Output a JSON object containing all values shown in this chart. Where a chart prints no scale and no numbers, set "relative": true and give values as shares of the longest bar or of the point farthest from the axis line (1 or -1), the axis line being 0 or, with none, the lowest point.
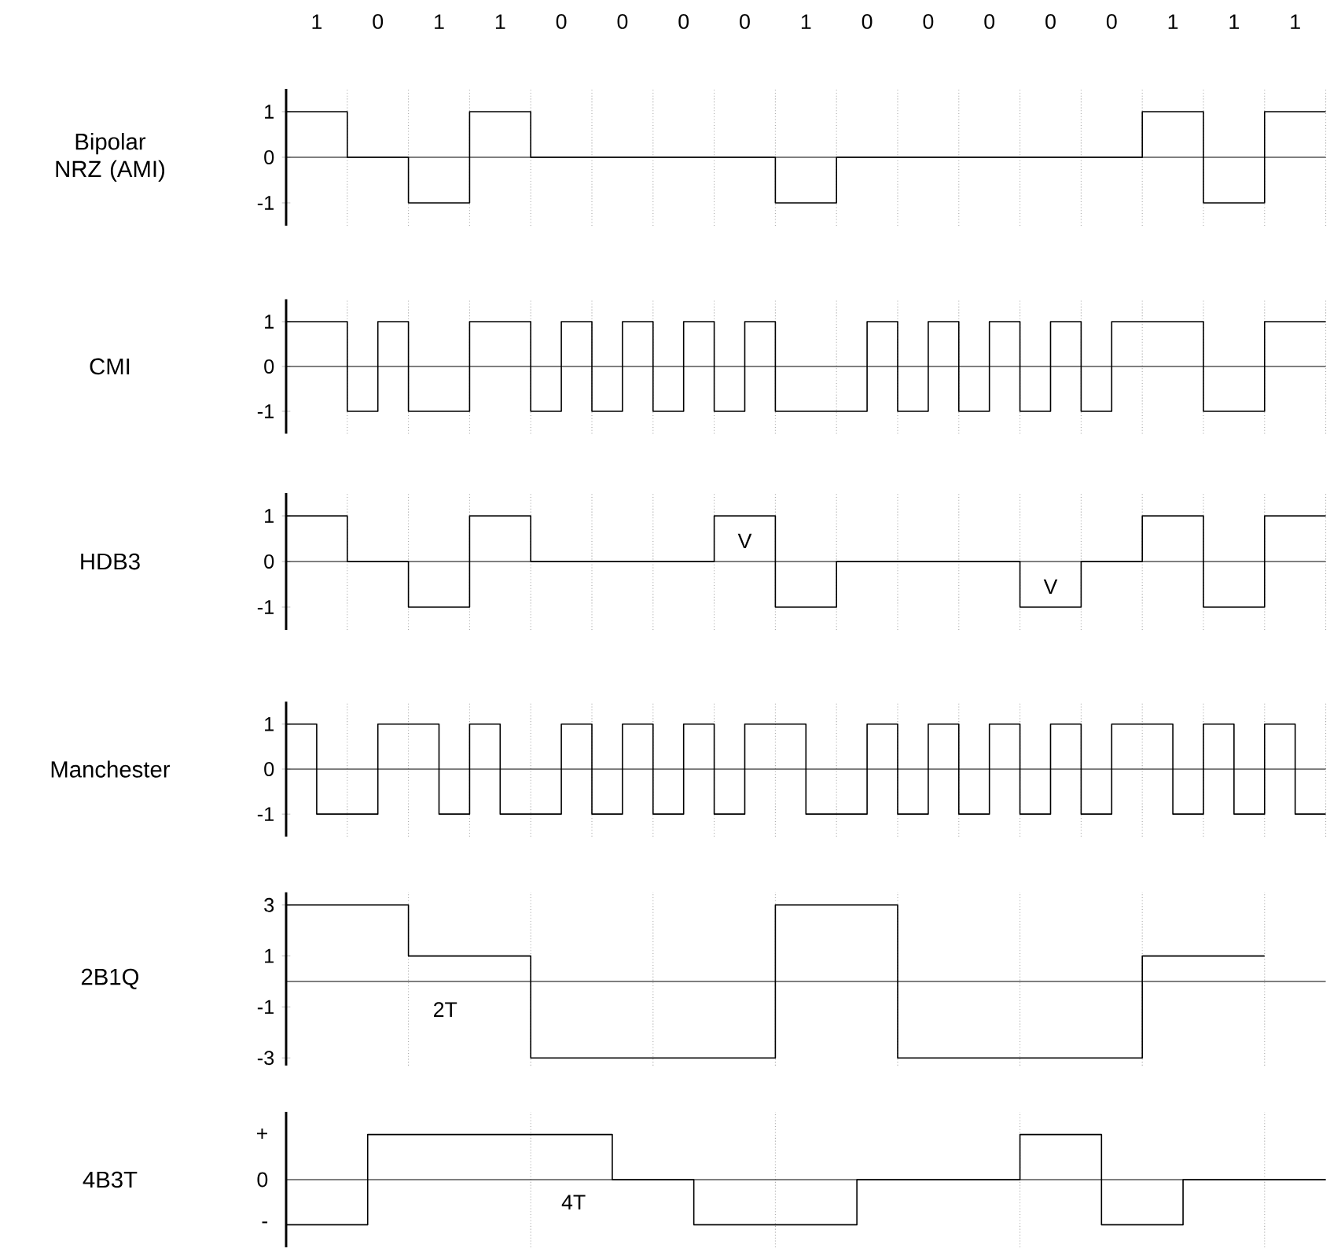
{
  "chart_data": [
    {
      "type": "step",
      "ylabel": "Bipolar NRZ (AMI)",
      "color": "#000000",
      "grid": "x",
      "categories": [
        null,
        "1",
        null,
        "0",
        null,
        "1",
        null,
        "1",
        null,
        "0",
        null,
        "0",
        null,
        "0",
        null,
        "0",
        null,
        "1",
        null,
        "0",
        null,
        "0",
        null,
        "0",
        null,
        "0",
        null,
        "0",
        null,
        "1",
        null,
        "1",
        null,
        "1",
        null
      ],
      "values": [
        1,
        1,
        0,
        0,
        -1,
        -1,
        1,
        1,
        0,
        0,
        0,
        0,
        0,
        0,
        0,
        0,
        -1,
        -1,
        0,
        0,
        0,
        0,
        0,
        0,
        0,
        0,
        0,
        0,
        1,
        1,
        -1,
        -1,
        1,
        1,
        1
      ],
      "ylim": [
        -1.5,
        1.5
      ],
      "yticks": [
        -1,
        0,
        1
      ]
    },
    {
      "type": "step",
      "ylabel": "CMI",
      "color": "#000000",
      "grid": "x",
      "categories": [
        null,
        null,
        null,
        null,
        null,
        null,
        null,
        null,
        null,
        null,
        null,
        null,
        null,
        null,
        null,
        null,
        null,
        null,
        null,
        null,
        null,
        null,
        null,
        null,
        null,
        null,
        null,
        null,
        null,
        null,
        null,
        null,
        null,
        null,
        null
      ],
      "values": [
        1,
        1,
        -1,
        1,
        -1,
        -1,
        1,
        1,
        -1,
        1,
        -1,
        1,
        -1,
        1,
        -1,
        1,
        -1,
        -1,
        -1,
        1,
        -1,
        1,
        -1,
        1,
        -1,
        1,
        -1,
        1,
        1,
        1,
        -1,
        -1,
        1,
        1,
        1
      ],
      "ylim": [
        -1.5,
        1.5
      ],
      "yticks": [
        -1,
        0,
        1
      ]
    },
    {
      "type": "step",
      "ylabel": "HDB3",
      "color": "#000000",
      "grid": "x",
      "categories": [
        null,
        null,
        null,
        null,
        null,
        null,
        null,
        null,
        null,
        null,
        null,
        null,
        null,
        null,
        null,
        null,
        null,
        null,
        null,
        null,
        null,
        null,
        null,
        null,
        null,
        null,
        null,
        null,
        null,
        null,
        null,
        null,
        null,
        null,
        null
      ],
      "values": [
        1,
        1,
        0,
        0,
        -1,
        -1,
        1,
        1,
        0,
        0,
        0,
        0,
        0,
        0,
        1,
        1,
        -1,
        -1,
        0,
        0,
        0,
        0,
        0,
        0,
        -1,
        -1,
        0,
        0,
        1,
        1,
        -1,
        -1,
        1,
        1,
        1
      ],
      "ylim": [
        -1.5,
        1.5
      ],
      "yticks": [
        -1,
        0,
        1
      ],
      "annotations": [
        "V",
        "V"
      ]
    },
    {
      "type": "step",
      "ylabel": "Manchester",
      "color": "#000000",
      "grid": "x",
      "categories": [
        null,
        null,
        null,
        null,
        null,
        null,
        null,
        null,
        null,
        null,
        null,
        null,
        null,
        null,
        null,
        null,
        null,
        null,
        null,
        null,
        null,
        null,
        null,
        null,
        null,
        null,
        null,
        null,
        null,
        null,
        null,
        null,
        null,
        null,
        null
      ],
      "values": [
        1,
        -1,
        -1,
        1,
        1,
        -1,
        1,
        -1,
        -1,
        1,
        -1,
        1,
        -1,
        1,
        -1,
        1,
        1,
        -1,
        -1,
        1,
        -1,
        1,
        -1,
        1,
        -1,
        1,
        -1,
        1,
        1,
        -1,
        1,
        -1,
        1,
        -1,
        -1
      ],
      "ylim": [
        -1.5,
        1.5
      ],
      "yticks": [
        -1,
        0,
        1
      ]
    },
    {
      "type": "step",
      "ylabel": "2B1Q",
      "color": "#000000",
      "grid": "x",
      "categories": [
        null,
        null,
        null,
        null,
        null,
        null,
        null,
        null,
        null,
        null,
        null,
        null,
        null,
        null,
        null,
        null,
        null,
        null,
        null,
        null,
        null,
        null,
        null,
        null,
        null,
        null,
        null,
        null,
        null,
        null,
        null,
        null,
        null,
        null,
        null
      ],
      "values": [
        3,
        3,
        3,
        3,
        1,
        1,
        1,
        1,
        -3,
        -3,
        -3,
        -3,
        -3,
        -3,
        -3,
        -3,
        3,
        3,
        3,
        3,
        -3,
        -3,
        -3,
        -3,
        -3,
        -3,
        -3,
        -3,
        1,
        1,
        1,
        1,
        1,
        null,
        null
      ],
      "ylim": [
        -3.3,
        3.5
      ],
      "yticks": [
        -3,
        -1,
        1,
        3
      ],
      "annotations": [
        "2T"
      ]
    },
    {
      "type": "step",
      "ylabel": "4B3T",
      "color": "#000000",
      "grid": "x",
      "relative": true,
      "categories": [
        null,
        null,
        null,
        null,
        null,
        null,
        null,
        null,
        null,
        null,
        null,
        null,
        null,
        null,
        null,
        null,
        null,
        null,
        null,
        null,
        null,
        null,
        null,
        null,
        null,
        null,
        null,
        null,
        null,
        null,
        null,
        null,
        null,
        null,
        null,
        null,
        null,
        null,
        null,
        null,
        null,
        null,
        null,
        null,
        null,
        null,
        null,
        null,
        null,
        null,
        null,
        null
      ],
      "values": [
        -1,
        -1,
        -1,
        -1,
        1,
        1,
        1,
        1,
        1,
        1,
        1,
        1,
        1,
        1,
        1,
        1,
        0,
        0,
        0,
        0,
        -1,
        -1,
        -1,
        -1,
        -1,
        -1,
        -1,
        -1,
        0,
        0,
        0,
        0,
        0,
        0,
        0,
        0,
        1,
        1,
        1,
        1,
        -1,
        -1,
        -1,
        -1,
        0,
        0,
        0,
        0,
        0,
        0,
        0,
        0
      ],
      "annotations": [
        "4T",
        "+",
        "0",
        "-"
      ]
    }
  ]
}
